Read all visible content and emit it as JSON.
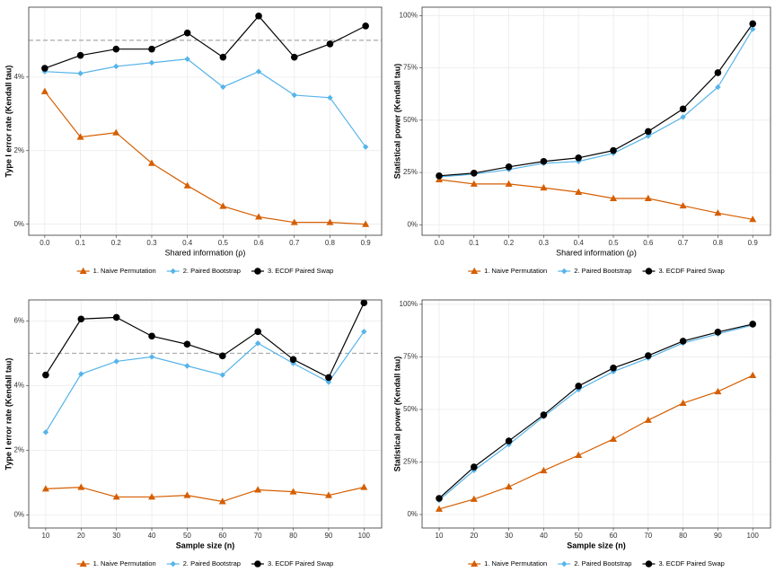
{
  "chart_data": [
    {
      "type": "line",
      "xlabel": "Shared information (ρ)",
      "ylabel": "Type I error rate (Kendall tau)",
      "x": [
        0,
        0.1,
        0.2,
        0.3,
        0.4,
        0.5,
        0.6,
        0.7,
        0.8,
        0.9
      ],
      "xlim": [
        -0.045,
        0.945
      ],
      "xticks": [
        {
          "value": 0,
          "label": "0.0"
        },
        0.1,
        0.2,
        0.3,
        0.4,
        0.5,
        0.6,
        0.7,
        0.8,
        0.9
      ],
      "ylim": [
        -0.3,
        5.9
      ],
      "yticks": [
        {
          "value": 0,
          "label": "0%"
        },
        {
          "value": 2,
          "label": "2%"
        },
        {
          "value": 4,
          "label": "4%"
        }
      ],
      "hline": 5,
      "grid": true,
      "legend": "bottom",
      "series": [
        {
          "name": "1. Naive Permutation",
          "color": "#d55e00",
          "marker": "triangle",
          "values": [
            3.61,
            2.37,
            2.49,
            1.66,
            1.05,
            0.49,
            0.2,
            0.05,
            0.05,
            0
          ]
        },
        {
          "name": "2. Paired Bootstrap",
          "color": "#56b4e9",
          "marker": "diamond",
          "values": [
            4.15,
            4.1,
            4.29,
            4.39,
            4.49,
            3.73,
            4.15,
            3.51,
            3.44,
            2.1
          ]
        },
        {
          "name": "3. ECDF Paired Swap",
          "color": "#000000",
          "marker": "circle",
          "values": [
            4.24,
            4.59,
            4.76,
            4.76,
            5.2,
            4.54,
            5.66,
            4.54,
            4.9,
            5.39
          ]
        }
      ]
    },
    {
      "type": "line",
      "xlabel": "Shared information (ρ)",
      "ylabel": "Statistical power (Kendall tau)",
      "x": [
        0,
        0.1,
        0.2,
        0.3,
        0.4,
        0.5,
        0.6,
        0.7,
        0.8,
        0.9
      ],
      "xlim": [
        -0.049,
        0.951
      ],
      "xticks": [
        {
          "value": 0,
          "label": "0.0"
        },
        0.1,
        0.2,
        0.3,
        0.4,
        0.5,
        0.6,
        0.7,
        0.8,
        0.9
      ],
      "ylim": [
        -5,
        104
      ],
      "yticks": [
        {
          "value": 0,
          "label": "0%"
        },
        {
          "value": 25,
          "label": "25%"
        },
        {
          "value": 50,
          "label": "50%"
        },
        {
          "value": 75,
          "label": "75%"
        },
        {
          "value": 100,
          "label": "100%"
        }
      ],
      "grid": true,
      "legend": "bottom",
      "series": [
        {
          "name": "1. Naive Permutation",
          "color": "#d55e00",
          "marker": "triangle",
          "values": [
            21.6,
            19.5,
            19.5,
            17.7,
            15.6,
            12.6,
            12.6,
            9.1,
            5.6,
            2.6
          ]
        },
        {
          "name": "2. Paired Bootstrap",
          "color": "#56b4e9",
          "marker": "diamond",
          "values": [
            22.9,
            24.2,
            26.4,
            29.4,
            30.3,
            34.2,
            42.4,
            51.5,
            65.8,
            93.5
          ]
        },
        {
          "name": "3. ECDF Paired Swap",
          "color": "#000000",
          "marker": "circle",
          "values": [
            23.4,
            24.7,
            27.7,
            30.3,
            32,
            35.5,
            44.6,
            55.4,
            72.7,
            96.1
          ]
        }
      ]
    },
    {
      "type": "line",
      "xlabel": "Sample size (n)",
      "ylabel": "Type I error rate (Kendall tau)",
      "x": [
        10,
        20,
        30,
        40,
        50,
        60,
        70,
        80,
        90,
        100
      ],
      "xlim": [
        5.2,
        105
      ],
      "xticks": [
        10,
        20,
        30,
        40,
        50,
        60,
        70,
        80,
        90,
        100
      ],
      "ylim": [
        -0.4,
        6.65
      ],
      "yticks": [
        {
          "value": 0,
          "label": "0%"
        },
        {
          "value": 2,
          "label": "2%"
        },
        {
          "value": 4,
          "label": "4%"
        },
        {
          "value": 6,
          "label": "6%"
        }
      ],
      "hline": 5,
      "grid": true,
      "legend": "bottom",
      "series": [
        {
          "name": "1. Naive Permutation",
          "color": "#d55e00",
          "marker": "triangle",
          "values": [
            0.81,
            0.86,
            0.56,
            0.56,
            0.61,
            0.42,
            0.78,
            0.72,
            0.61,
            0.86
          ]
        },
        {
          "name": "2. Paired Bootstrap",
          "color": "#56b4e9",
          "marker": "diamond",
          "values": [
            2.56,
            4.36,
            4.75,
            4.89,
            4.61,
            4.33,
            5.31,
            4.69,
            4.11,
            5.67
          ]
        },
        {
          "name": "3. ECDF Paired Swap",
          "color": "#000000",
          "marker": "circle",
          "values": [
            4.33,
            6.06,
            6.11,
            5.53,
            5.28,
            4.92,
            5.67,
            4.81,
            4.25,
            6.56
          ]
        }
      ]
    },
    {
      "type": "line",
      "xlabel": "Sample size (n)",
      "ylabel": "Statistical power (Kendall tau)",
      "x": [
        10,
        20,
        30,
        40,
        50,
        60,
        70,
        80,
        90,
        100
      ],
      "xlim": [
        5.1,
        105.1
      ],
      "xticks": [
        10,
        20,
        30,
        40,
        50,
        60,
        70,
        80,
        90,
        100
      ],
      "ylim": [
        -6.4,
        102.1
      ],
      "yticks": [
        {
          "value": 0,
          "label": "0%"
        },
        {
          "value": 25,
          "label": "25%"
        },
        {
          "value": 50,
          "label": "50%"
        },
        {
          "value": 75,
          "label": "75%"
        },
        {
          "value": 100,
          "label": "100%"
        }
      ],
      "grid": true,
      "legend": "bottom",
      "series": [
        {
          "name": "1. Naive Permutation",
          "color": "#d55e00",
          "marker": "triangle",
          "values": [
            2.6,
            7.3,
            13.2,
            20.9,
            28.2,
            35.9,
            44.9,
            53,
            58.5,
            66.2
          ]
        },
        {
          "name": "2. Paired Bootstrap",
          "color": "#56b4e9",
          "marker": "diamond",
          "values": [
            6.8,
            21,
            33.3,
            46.6,
            59.4,
            68,
            74.4,
            81.6,
            85.9,
            90.2
          ]
        },
        {
          "name": "3. ECDF Paired Swap",
          "color": "#000000",
          "marker": "circle",
          "values": [
            7.7,
            22.6,
            35,
            47.4,
            61.1,
            69.7,
            75.6,
            82.5,
            86.8,
            90.6
          ]
        }
      ]
    }
  ]
}
